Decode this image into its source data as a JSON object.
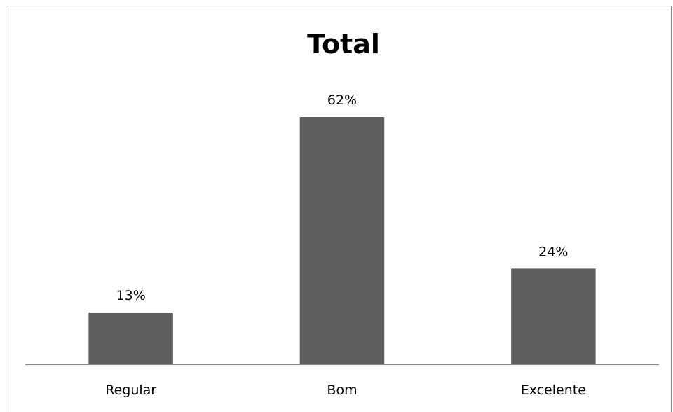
{
  "chart_data": {
    "type": "bar",
    "title": "Total",
    "categories": [
      "Regular",
      "Bom",
      "Excelente"
    ],
    "values": [
      13,
      62,
      24
    ],
    "data_labels": [
      "13%",
      "62%",
      "24%"
    ],
    "unit": "%",
    "xlabel": "",
    "ylabel": "",
    "ylim": [
      0,
      62
    ],
    "grid": false,
    "legend": "none",
    "colors": {
      "bar": "#5f5f5f",
      "axis": "#868686",
      "frame": "#868686"
    }
  }
}
